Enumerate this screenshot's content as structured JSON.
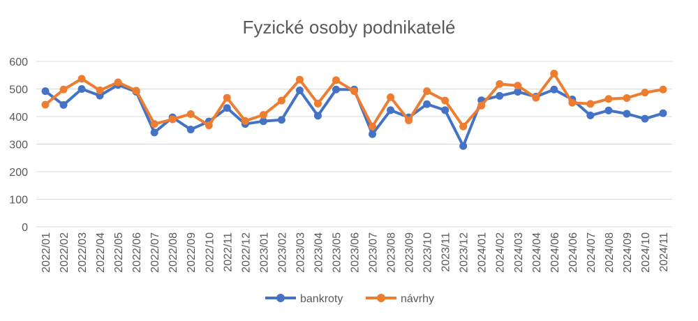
{
  "chart_data": {
    "type": "line",
    "title": "Fyzické osoby podnikatelé",
    "xlabel": "",
    "ylabel": "",
    "ylim": [
      0,
      600
    ],
    "yticks": [
      0,
      100,
      200,
      300,
      400,
      500,
      600
    ],
    "grid": "horizontal",
    "legend_position": "bottom",
    "categories": [
      "2022/01",
      "2022/02",
      "2022/03",
      "2022/04",
      "2022/05",
      "2022/06",
      "2022/07",
      "2022/08",
      "2022/09",
      "2022/10",
      "2022/11",
      "2022/12",
      "2023/01",
      "2023/02",
      "2023/03",
      "2023/04",
      "2023/05",
      "2023/06",
      "2023/07",
      "2023/08",
      "2023/09",
      "2023/10",
      "2023/11",
      "2023/12",
      "2024/01",
      "2024/02",
      "2024/03",
      "2024/04",
      "2024/06",
      "2024/06",
      "2024/07",
      "2024/08",
      "2024/09",
      "2024/10",
      "2024/11"
    ],
    "series": [
      {
        "name": "bankroty",
        "color": "#4472C4",
        "values": [
          492,
          442,
          500,
          476,
          515,
          490,
          342,
          397,
          353,
          382,
          431,
          373,
          383,
          388,
          495,
          403,
          498,
          498,
          336,
          423,
          397,
          445,
          423,
          293,
          459,
          475,
          490,
          472,
          498,
          462,
          404,
          422,
          410,
          392,
          412
        ]
      },
      {
        "name": "návrhy",
        "color": "#ED7D31",
        "values": [
          443,
          498,
          537,
          495,
          524,
          494,
          373,
          390,
          409,
          368,
          468,
          384,
          406,
          458,
          534,
          447,
          532,
          492,
          364,
          470,
          386,
          492,
          458,
          364,
          440,
          518,
          512,
          468,
          556,
          450,
          446,
          464,
          467,
          487,
          498
        ]
      }
    ]
  }
}
